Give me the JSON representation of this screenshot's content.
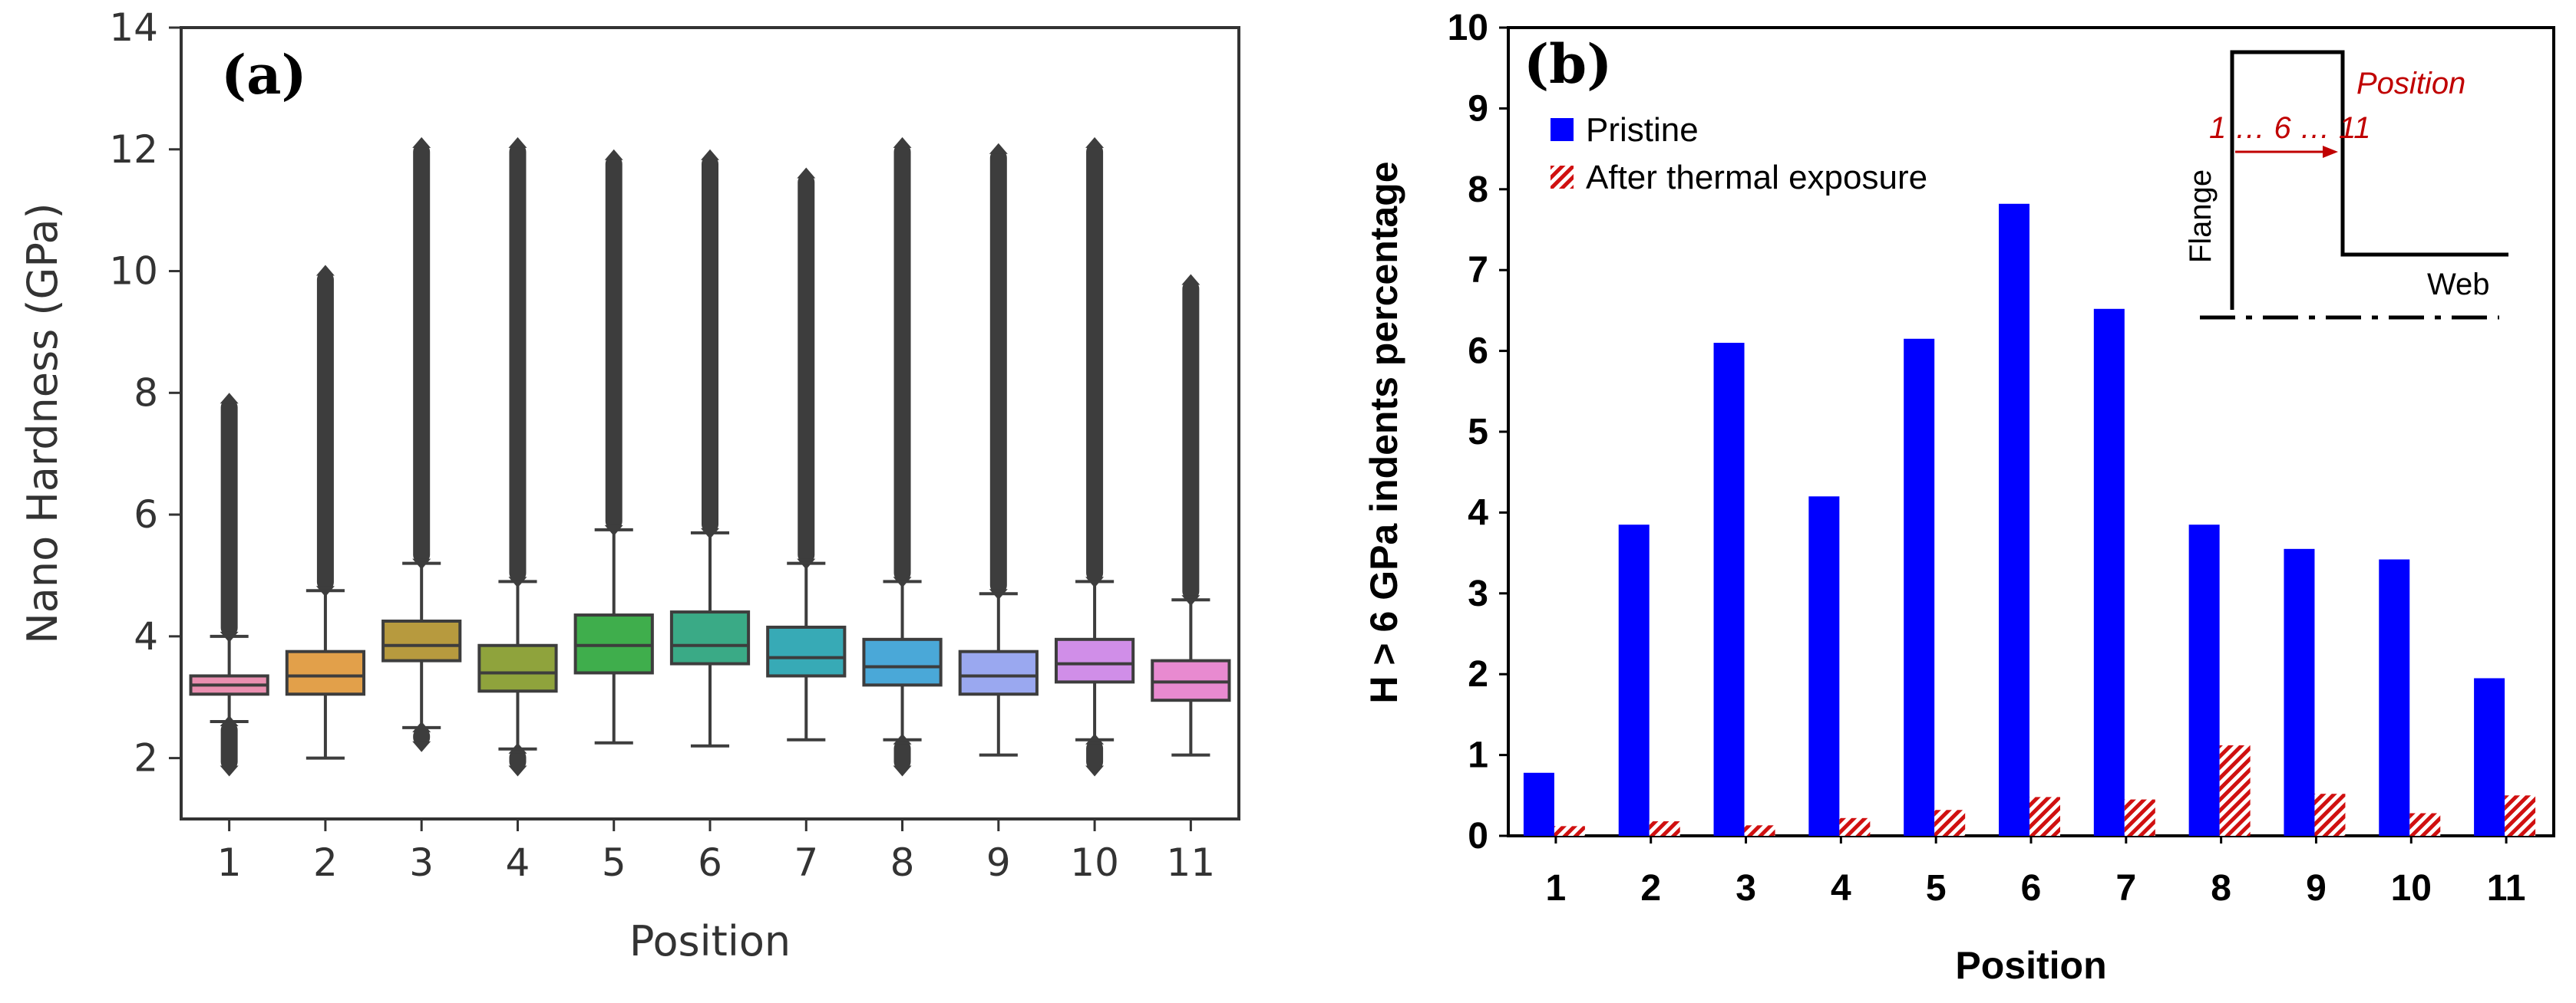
{
  "chart_data": [
    {
      "type": "box",
      "panel_label": "(a)",
      "xlabel": "Position",
      "ylabel": "Nano Hardness (GPa)",
      "ylim": [
        1,
        14
      ],
      "yticks": [
        2,
        4,
        6,
        8,
        10,
        12,
        14
      ],
      "categories": [
        "1",
        "2",
        "3",
        "4",
        "5",
        "6",
        "7",
        "8",
        "9",
        "10",
        "11"
      ],
      "boxes": [
        {
          "q1": 3.05,
          "median": 3.2,
          "q3": 3.35,
          "whisker_low": 2.6,
          "whisker_high": 4.0,
          "outlier_min": 1.8,
          "outlier_max": 7.9,
          "color": "#ea8fb0"
        },
        {
          "q1": 3.05,
          "median": 3.35,
          "q3": 3.75,
          "whisker_low": 2.0,
          "whisker_high": 4.75,
          "outlier_min": 4.75,
          "outlier_max": 10.0,
          "color": "#e2a04a"
        },
        {
          "q1": 3.6,
          "median": 3.85,
          "q3": 4.25,
          "whisker_low": 2.5,
          "whisker_high": 5.2,
          "outlier_min": 2.2,
          "outlier_max": 12.1,
          "color": "#b79a3e"
        },
        {
          "q1": 3.1,
          "median": 3.4,
          "q3": 3.85,
          "whisker_low": 2.15,
          "whisker_high": 4.9,
          "outlier_min": 1.8,
          "outlier_max": 12.1,
          "color": "#8fa33c"
        },
        {
          "q1": 3.4,
          "median": 3.85,
          "q3": 4.35,
          "whisker_low": 2.25,
          "whisker_high": 5.75,
          "outlier_min": 5.75,
          "outlier_max": 11.9,
          "color": "#3fae4c"
        },
        {
          "q1": 3.55,
          "median": 3.85,
          "q3": 4.4,
          "whisker_low": 2.2,
          "whisker_high": 5.7,
          "outlier_min": 5.7,
          "outlier_max": 11.9,
          "color": "#3aaa86"
        },
        {
          "q1": 3.35,
          "median": 3.65,
          "q3": 4.15,
          "whisker_low": 2.3,
          "whisker_high": 5.2,
          "outlier_min": 5.2,
          "outlier_max": 11.6,
          "color": "#37aab6"
        },
        {
          "q1": 3.2,
          "median": 3.5,
          "q3": 3.95,
          "whisker_low": 2.3,
          "whisker_high": 4.9,
          "outlier_min": 1.8,
          "outlier_max": 12.1,
          "color": "#4aa8d8"
        },
        {
          "q1": 3.05,
          "median": 3.35,
          "q3": 3.75,
          "whisker_low": 2.05,
          "whisker_high": 4.7,
          "outlier_min": 4.7,
          "outlier_max": 12.0,
          "color": "#9aa8f0"
        },
        {
          "q1": 3.25,
          "median": 3.55,
          "q3": 3.95,
          "whisker_low": 2.3,
          "whisker_high": 4.9,
          "outlier_min": 1.8,
          "outlier_max": 12.1,
          "color": "#d08ee8"
        },
        {
          "q1": 2.95,
          "median": 3.25,
          "q3": 3.6,
          "whisker_low": 2.05,
          "whisker_high": 4.6,
          "outlier_min": 4.6,
          "outlier_max": 9.85,
          "color": "#e88ad0"
        }
      ]
    },
    {
      "type": "bar",
      "panel_label": "(b)",
      "xlabel": "Position",
      "ylabel": "H > 6 GPa indents percentage",
      "ylim": [
        0,
        10
      ],
      "yticks": [
        0,
        1,
        2,
        3,
        4,
        5,
        6,
        7,
        8,
        9,
        10
      ],
      "categories": [
        "1",
        "2",
        "3",
        "4",
        "5",
        "6",
        "7",
        "8",
        "9",
        "10",
        "11"
      ],
      "series": [
        {
          "name": "Pristine",
          "color": "#0000ff",
          "values": [
            0.78,
            3.85,
            6.1,
            4.2,
            6.15,
            7.82,
            6.52,
            3.85,
            3.55,
            3.42,
            1.95
          ]
        },
        {
          "name": "After thermal exposure",
          "color": "#cc0000",
          "values": [
            0.12,
            0.18,
            0.13,
            0.22,
            0.32,
            0.48,
            0.45,
            1.12,
            0.52,
            0.28,
            0.5
          ]
        }
      ],
      "inset": {
        "label_position": "Position",
        "label_sequence": "1 … 6 … 11",
        "label_flange": "Flange",
        "label_web": "Web"
      }
    }
  ]
}
